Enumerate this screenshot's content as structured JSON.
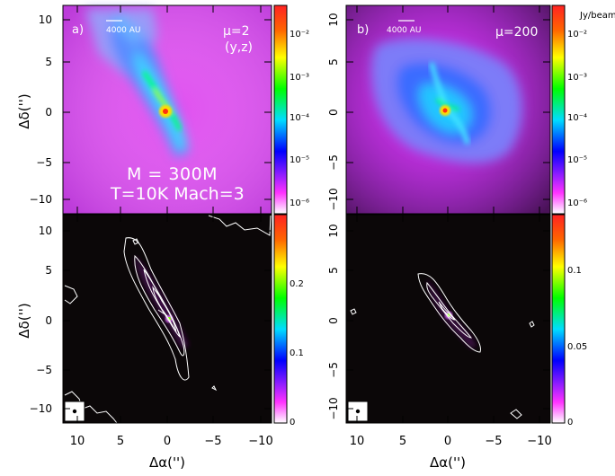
{
  "figure": {
    "panels": [
      {
        "id": "top-left",
        "letter": "a)",
        "scalebar": "4000 AU",
        "mu": "μ=2",
        "projection": "(y,z)",
        "mass": "M = 300M",
        "conditions": "T=10K Mach=3"
      },
      {
        "id": "top-right",
        "letter": "b)",
        "scalebar": "4000 AU",
        "mu": "μ=200"
      },
      {
        "id": "bottom-left"
      },
      {
        "id": "bottom-right"
      }
    ],
    "axes": {
      "ylabel": "Δδ('')",
      "xlabel": "Δα('')",
      "yticks": [
        "10",
        "5",
        "0",
        "−5",
        "−10"
      ],
      "xticks": [
        "10",
        "5",
        "0",
        "−5",
        "−10"
      ]
    },
    "colorbars": {
      "top_left": [
        "10⁻²",
        "10⁻³",
        "10⁻⁴",
        "10⁻⁵",
        "10⁻⁶"
      ],
      "top_right": [
        "10⁻²",
        "10⁻³",
        "10⁻⁴",
        "10⁻⁵",
        "10⁻⁶"
      ],
      "top_right_unit": "Jy/beam",
      "bottom_left": [
        "0.2",
        "0.1",
        "0"
      ],
      "bottom_right": [
        "0.1",
        "0.05",
        "0"
      ]
    },
    "colors": {
      "frame": "#000000",
      "contour": "#ffffff",
      "text_on_map": "#ffffff"
    }
  }
}
